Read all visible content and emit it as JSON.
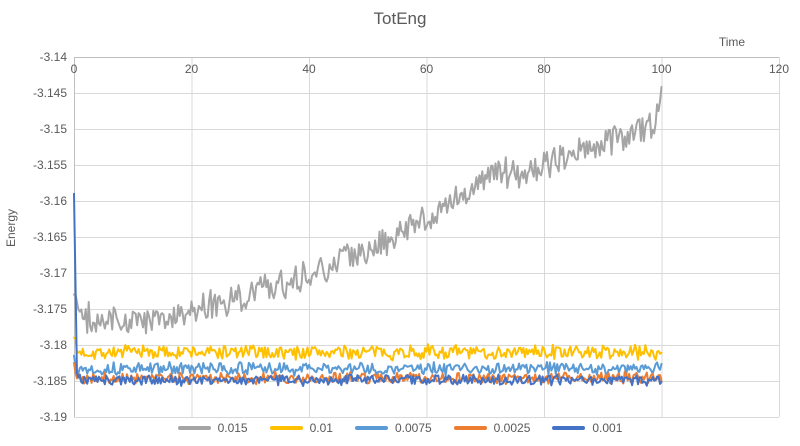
{
  "chart_data": {
    "type": "line",
    "title": "TotEng",
    "xlabel": "Time",
    "ylabel": "Energy",
    "xlim": [
      0,
      120
    ],
    "ylim": [
      -3.19,
      -3.14
    ],
    "xticks": [
      0,
      20,
      40,
      60,
      80,
      100,
      120
    ],
    "xtick_labels": [
      "0",
      "20",
      "40",
      "60",
      "80",
      "100",
      "120"
    ],
    "yticks": [
      -3.14,
      -3.145,
      -3.15,
      -3.155,
      -3.16,
      -3.165,
      -3.17,
      -3.175,
      -3.18,
      -3.185,
      -3.19
    ],
    "ytick_labels": [
      "-3.14",
      "-3.145",
      "-3.15",
      "-3.155",
      "-3.16",
      "-3.165",
      "-3.17",
      "-3.175",
      "-3.18",
      "-3.185",
      "-3.19"
    ],
    "grid": true,
    "legend_position": "bottom",
    "data_x_max": 100,
    "sample_step": 0.25,
    "axis_color": "#BFBFBF",
    "grid_color": "#D9D9D9",
    "text_color": "#595959",
    "series": [
      {
        "name": "0.015",
        "color": "#A5A5A5",
        "noise_amplitude": 0.0019,
        "seed": 2024,
        "trend": [
          [
            0,
            -3.173
          ],
          [
            1.5,
            -3.1763
          ],
          [
            6,
            -3.1766
          ],
          [
            10,
            -3.1768
          ],
          [
            14,
            -3.1762
          ],
          [
            18,
            -3.1757
          ],
          [
            22,
            -3.175
          ],
          [
            26,
            -3.1742
          ],
          [
            30,
            -3.1731
          ],
          [
            34,
            -3.1718
          ],
          [
            38,
            -3.1706
          ],
          [
            42,
            -3.1695
          ],
          [
            46,
            -3.1683
          ],
          [
            50,
            -3.167
          ],
          [
            54,
            -3.1654
          ],
          [
            58,
            -3.1632
          ],
          [
            62,
            -3.1612
          ],
          [
            66,
            -3.159
          ],
          [
            70,
            -3.1568
          ],
          [
            73,
            -3.1558
          ],
          [
            76,
            -3.1568
          ],
          [
            80,
            -3.155
          ],
          [
            84,
            -3.1541
          ],
          [
            88,
            -3.1528
          ],
          [
            92,
            -3.1513
          ],
          [
            96,
            -3.1502
          ],
          [
            99,
            -3.149
          ],
          [
            99.5,
            -3.1475
          ],
          [
            100,
            -3.1442
          ]
        ]
      },
      {
        "name": "0.01",
        "color": "#FFC000",
        "noise_amplitude": 0.0009,
        "seed": 7,
        "trend": [
          [
            0,
            -3.179
          ],
          [
            0.5,
            -3.181
          ],
          [
            100,
            -3.181
          ]
        ]
      },
      {
        "name": "0.0075",
        "color": "#5B9BD5",
        "noise_amplitude": 0.0008,
        "seed": 13,
        "trend": [
          [
            0,
            -3.1815
          ],
          [
            0.5,
            -3.1833
          ],
          [
            100,
            -3.1833
          ]
        ]
      },
      {
        "name": "0.0025",
        "color": "#ED7D31",
        "noise_amplitude": 0.00075,
        "seed": 21,
        "trend": [
          [
            0,
            -3.1825
          ],
          [
            0.5,
            -3.1846
          ],
          [
            100,
            -3.1846
          ]
        ]
      },
      {
        "name": "0.001",
        "color": "#4472C4",
        "noise_amplitude": 0.00065,
        "seed": 33,
        "trend": [
          [
            0,
            -3.159
          ],
          [
            0.5,
            -3.1838
          ],
          [
            1.2,
            -3.1849
          ],
          [
            100,
            -3.1849
          ]
        ]
      }
    ]
  }
}
